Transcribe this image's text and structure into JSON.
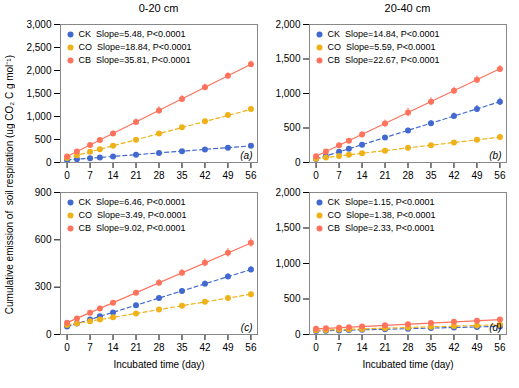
{
  "ylabel": "Cumulative emission of  soil respiration (ug CO₂ C g mol⁻¹)",
  "chart_data": [
    {
      "type": "scatter",
      "title": "0-20 cm",
      "annotation": "(a)",
      "legend": "top-left",
      "grid": false,
      "marker": "circle",
      "x": [
        0,
        3,
        7,
        10,
        14,
        21,
        28,
        35,
        42,
        49,
        56
      ],
      "xlim": [
        -2,
        58
      ],
      "xticks": [
        0,
        7,
        14,
        21,
        28,
        35,
        42,
        49,
        56
      ],
      "ylim": [
        0,
        3000
      ],
      "yticks": [
        0,
        500,
        1000,
        1500,
        2000,
        2500,
        3000
      ],
      "series": [
        {
          "name": "CK  Slope=5.48, P<0.0001",
          "line_style": "dashed",
          "values": [
            55,
            72,
            93,
            110,
            131,
            170,
            208,
            247,
            285,
            323,
            362
          ],
          "errors": [
            8,
            8,
            9,
            9,
            10,
            11,
            12,
            13,
            14,
            15,
            16
          ],
          "fit_x": [
            0,
            56
          ],
          "fit_y": [
            55,
            361.88
          ]
        },
        {
          "name": "CO  Slope=18.84, P<0.0001",
          "line_style": "dashed",
          "values": [
            100,
            157,
            232,
            289,
            364,
            497,
            631,
            764,
            897,
            1030,
            1163
          ],
          "errors": [
            10,
            12,
            15,
            18,
            22,
            28,
            34,
            40,
            46,
            52,
            58
          ],
          "fit_x": [
            0,
            56
          ],
          "fit_y": [
            100,
            1155.04
          ]
        },
        {
          "name": "CB  Slope=35.81, P<0.0001",
          "line_style": "solid",
          "values": [
            130,
            237,
            381,
            488,
            631,
            882,
            1133,
            1383,
            1634,
            1884,
            2135
          ],
          "errors": [
            12,
            20,
            30,
            38,
            48,
            65,
            80,
            75,
            70,
            65,
            70
          ],
          "fit_x": [
            0,
            56
          ],
          "fit_y": [
            130,
            2135.36
          ]
        }
      ]
    },
    {
      "type": "scatter",
      "title": "20-40 cm",
      "annotation": "(b)",
      "legend": "top-left",
      "grid": false,
      "marker": "circle",
      "x": [
        0,
        3,
        7,
        10,
        14,
        21,
        28,
        35,
        42,
        49,
        56
      ],
      "xlim": [
        -2,
        58
      ],
      "xticks": [
        0,
        7,
        14,
        21,
        28,
        35,
        42,
        49,
        56
      ],
      "ylim": [
        0,
        2000
      ],
      "yticks": [
        0,
        500,
        1000,
        1500,
        2000
      ],
      "series": [
        {
          "name": "CK  Slope=14.84, P<0.0001",
          "line_style": "dashed",
          "values": [
            50,
            95,
            154,
            198,
            258,
            362,
            465,
            569,
            673,
            776,
            880
          ],
          "errors": [
            6,
            9,
            13,
            16,
            20,
            27,
            32,
            38,
            44,
            50,
            55
          ],
          "fit_x": [
            0,
            56
          ],
          "fit_y": [
            50,
            881.04
          ]
        },
        {
          "name": "CO  Slope=5.59, P<0.0001",
          "line_style": "dashed",
          "values": [
            55,
            72,
            94,
            111,
            133,
            172,
            212,
            251,
            290,
            330,
            369
          ],
          "errors": [
            6,
            7,
            8,
            9,
            10,
            12,
            14,
            16,
            18,
            20,
            22
          ],
          "fit_x": [
            0,
            56
          ],
          "fit_y": [
            55,
            368.04
          ]
        },
        {
          "name": "CB  Slope=22.67, P<0.0001",
          "line_style": "solid",
          "values": [
            90,
            158,
            249,
            317,
            407,
            566,
            724,
            882,
            1040,
            1198,
            1356
          ],
          "errors": [
            9,
            15,
            22,
            28,
            36,
            50,
            62,
            55,
            50,
            55,
            50
          ],
          "fit_x": [
            0,
            56
          ],
          "fit_y": [
            90,
            1359.52
          ]
        }
      ]
    },
    {
      "type": "scatter",
      "xlabel": "Incubated time (day)",
      "annotation": "(c)",
      "legend": "top-left",
      "grid": false,
      "marker": "circle",
      "x": [
        0,
        3,
        7,
        10,
        14,
        21,
        28,
        35,
        42,
        49,
        56
      ],
      "xlim": [
        -2,
        58
      ],
      "xticks": [
        0,
        7,
        14,
        21,
        28,
        35,
        42,
        49,
        56
      ],
      "ylim": [
        0,
        900
      ],
      "yticks": [
        0,
        300,
        600,
        900
      ],
      "series": [
        {
          "name": "CK  Slope=6.46, P<0.0001",
          "line_style": "dashed",
          "values": [
            50,
            69,
            95,
            115,
            140,
            186,
            231,
            276,
            322,
            367,
            412
          ],
          "errors": [
            5,
            6,
            7,
            8,
            9,
            11,
            13,
            15,
            17,
            18,
            20
          ],
          "fit_x": [
            0,
            56
          ],
          "fit_y": [
            50,
            411.76
          ]
        },
        {
          "name": "CO  Slope=3.49, P<0.0001",
          "line_style": "dashed",
          "values": [
            60,
            70,
            84,
            95,
            109,
            133,
            158,
            182,
            207,
            231,
            255
          ],
          "errors": [
            5,
            6,
            7,
            7,
            8,
            9,
            10,
            11,
            12,
            13,
            14
          ],
          "fit_x": [
            0,
            56
          ],
          "fit_y": [
            60,
            255.44
          ]
        },
        {
          "name": "CB  Slope=9.02, P<0.0001",
          "line_style": "solid",
          "values": [
            75,
            102,
            138,
            165,
            201,
            264,
            328,
            391,
            454,
            518,
            581
          ],
          "errors": [
            6,
            8,
            10,
            12,
            14,
            17,
            20,
            23,
            25,
            27,
            28
          ],
          "fit_x": [
            0,
            56
          ],
          "fit_y": [
            75,
            580.12
          ]
        }
      ]
    },
    {
      "type": "scatter",
      "xlabel": "Incubated time (day)",
      "annotation": "(d)",
      "legend": "top-left",
      "grid": false,
      "marker": "circle",
      "x": [
        0,
        3,
        7,
        10,
        14,
        21,
        28,
        35,
        42,
        49,
        56
      ],
      "xlim": [
        -2,
        58
      ],
      "xticks": [
        0,
        7,
        14,
        21,
        28,
        35,
        42,
        49,
        56
      ],
      "ylim": [
        0,
        2000
      ],
      "yticks": [
        0,
        500,
        1000,
        1500,
        2000
      ],
      "series": [
        {
          "name": "CK  Slope=1.15, P<0.0001",
          "line_style": "dashed",
          "values": [
            50,
            53,
            58,
            62,
            66,
            74,
            82,
            90,
            98,
            106,
            114
          ],
          "errors": [
            4,
            4,
            5,
            5,
            5,
            6,
            6,
            7,
            7,
            8,
            8
          ],
          "fit_x": [
            0,
            56
          ],
          "fit_y": [
            50,
            114.4
          ]
        },
        {
          "name": "CO  Slope=1.38, P<0.0001",
          "line_style": "dashed",
          "values": [
            60,
            64,
            70,
            74,
            79,
            89,
            99,
            109,
            118,
            128,
            137
          ],
          "errors": [
            5,
            5,
            5,
            6,
            6,
            7,
            7,
            8,
            8,
            9,
            9
          ],
          "fit_x": [
            0,
            56
          ],
          "fit_y": [
            60,
            137.28
          ]
        },
        {
          "name": "CB  Slope=2.33, P<0.0001",
          "line_style": "solid",
          "values": [
            80,
            87,
            96,
            103,
            113,
            129,
            145,
            162,
            178,
            194,
            211
          ],
          "errors": [
            6,
            7,
            8,
            8,
            9,
            10,
            11,
            12,
            13,
            14,
            14
          ],
          "fit_x": [
            0,
            56
          ],
          "fit_y": [
            80,
            210.48
          ]
        }
      ]
    }
  ]
}
